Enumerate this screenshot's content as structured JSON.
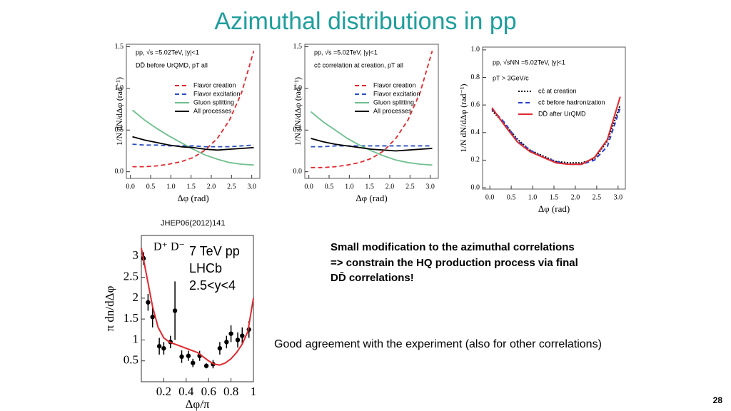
{
  "title": "Azimuthal distributions in pp",
  "notes": [
    "Small modification to the azimuthal correlations",
    "=> constrain the HQ production process via final",
    "DD̄ correlations!"
  ],
  "comment": "Good agreement with the experiment (also for other correlations)",
  "page_number": "28",
  "chart_data": [
    {
      "type": "line",
      "xlabel": "Δφ (rad)",
      "ylabel": "1/N dN/dΔφ (rad⁻¹)",
      "annotations": [
        "pp, √s =5.02TeV, |y|<1",
        "DD̄ before UrQMD, pT all"
      ],
      "xlim": [
        -0.1,
        3.2
      ],
      "ylim": [
        -0.08,
        1.53
      ],
      "xticks": [
        {
          "value": 0,
          "label": "0.0"
        },
        0.5,
        {
          "value": 1,
          "label": "1.0"
        },
        1.5,
        {
          "value": 2,
          "label": "2.0"
        },
        2.5,
        {
          "value": 3,
          "label": "3.0"
        }
      ],
      "yticks": [
        {
          "value": 0,
          "label": "0.0"
        },
        0.5,
        {
          "value": 1,
          "label": "1.0"
        },
        1.5
      ],
      "x": [
        0.05,
        0.35,
        0.65,
        0.95,
        1.25,
        1.55,
        1.85,
        2.15,
        2.45,
        2.75,
        3.05
      ],
      "series": [
        {
          "name": "Flavor creation",
          "color": "#e0282e",
          "dash": "dashed",
          "values": [
            0.06,
            0.06,
            0.07,
            0.09,
            0.12,
            0.17,
            0.26,
            0.4,
            0.62,
            0.95,
            1.45
          ]
        },
        {
          "name": "Flavor excitation",
          "color": "#2a4fc0",
          "dash": "dashed",
          "values": [
            0.33,
            0.32,
            0.32,
            0.31,
            0.31,
            0.31,
            0.3,
            0.3,
            0.3,
            0.31,
            0.32
          ]
        },
        {
          "name": "Gluon splitting",
          "color": "#6fbf8f",
          "dash": "solid",
          "values": [
            0.74,
            0.62,
            0.52,
            0.43,
            0.35,
            0.27,
            0.2,
            0.15,
            0.11,
            0.09,
            0.08
          ]
        },
        {
          "name": "All processes",
          "color": "#000000",
          "dash": "solid",
          "values": [
            0.42,
            0.38,
            0.35,
            0.32,
            0.3,
            0.29,
            0.27,
            0.26,
            0.27,
            0.28,
            0.29
          ]
        }
      ]
    },
    {
      "type": "line",
      "xlabel": "Δφ (rad)",
      "ylabel": "1/N dN/dΔφ (rad⁻¹)",
      "annotations": [
        "pp, √s =5.02TeV, |y|<1",
        "cc̄ correlation at creation, pT all"
      ],
      "xlim": [
        -0.1,
        3.2
      ],
      "ylim": [
        -0.08,
        1.53
      ],
      "xticks": [
        {
          "value": 0,
          "label": "0.0"
        },
        0.5,
        {
          "value": 1,
          "label": "1.0"
        },
        1.5,
        {
          "value": 2,
          "label": "2.0"
        },
        2.5,
        {
          "value": 3,
          "label": "3.0"
        }
      ],
      "yticks": [
        {
          "value": 0,
          "label": "0.0"
        },
        0.5,
        {
          "value": 1,
          "label": "1.0"
        },
        1.5
      ],
      "x": [
        0.05,
        0.35,
        0.65,
        0.95,
        1.25,
        1.55,
        1.85,
        2.15,
        2.45,
        2.75,
        3.05
      ],
      "series": [
        {
          "name": "Flavor creation",
          "color": "#e0282e",
          "dash": "dashed",
          "values": [
            0.05,
            0.05,
            0.06,
            0.08,
            0.11,
            0.16,
            0.25,
            0.4,
            0.62,
            0.95,
            1.45
          ]
        },
        {
          "name": "Flavor excitation",
          "color": "#2a4fc0",
          "dash": "dashed",
          "values": [
            0.3,
            0.3,
            0.31,
            0.31,
            0.31,
            0.31,
            0.31,
            0.31,
            0.31,
            0.31,
            0.31
          ]
        },
        {
          "name": "Gluon splitting",
          "color": "#6fbf8f",
          "dash": "solid",
          "values": [
            0.72,
            0.6,
            0.5,
            0.4,
            0.32,
            0.25,
            0.19,
            0.14,
            0.11,
            0.09,
            0.08
          ]
        },
        {
          "name": "All processes",
          "color": "#000000",
          "dash": "solid",
          "values": [
            0.4,
            0.36,
            0.33,
            0.31,
            0.29,
            0.27,
            0.26,
            0.25,
            0.26,
            0.27,
            0.28
          ]
        }
      ]
    },
    {
      "type": "line",
      "xlabel": "Δφ (rad)",
      "ylabel": "1/N dN/dΔφ (rad⁻¹)",
      "annotations": [
        "pp, √sNN =5.02TeV, |y|<1",
        "pT > 3GeV/c"
      ],
      "xlim": [
        -0.17,
        3.17
      ],
      "ylim": [
        -0.01,
        1.02
      ],
      "xticks": [
        {
          "value": 0,
          "label": "0.0"
        },
        0.5,
        {
          "value": 1,
          "label": "1.0"
        },
        1.5,
        {
          "value": 2,
          "label": "2.0"
        },
        2.5,
        {
          "value": 3,
          "label": "3.0"
        }
      ],
      "yticks": [
        {
          "value": 0,
          "label": "0.0"
        },
        0.2,
        0.4,
        0.6,
        0.8,
        {
          "value": 1,
          "label": "1.0"
        }
      ],
      "x": [
        0.05,
        0.35,
        0.65,
        0.95,
        1.25,
        1.55,
        1.85,
        2.15,
        2.45,
        2.75,
        3.05
      ],
      "series": [
        {
          "name": "cc̄ at creation",
          "color": "#000000",
          "dash": "dotted",
          "values": [
            0.56,
            0.46,
            0.35,
            0.27,
            0.23,
            0.19,
            0.18,
            0.18,
            0.21,
            0.34,
            0.6
          ]
        },
        {
          "name": "cc̄ before hadronization",
          "color": "#2a3fd0",
          "dash": "dashed",
          "values": [
            0.57,
            0.47,
            0.34,
            0.27,
            0.22,
            0.19,
            0.17,
            0.17,
            0.2,
            0.3,
            0.58
          ]
        },
        {
          "name": "DD̄ after UrQMD",
          "color": "#e0282e",
          "dash": "solid",
          "values": [
            0.58,
            0.45,
            0.33,
            0.26,
            0.22,
            0.18,
            0.17,
            0.17,
            0.22,
            0.35,
            0.66
          ]
        }
      ]
    },
    {
      "type": "scatter",
      "source": "JHEP06(2012)141",
      "xlabel": "Δφ/π",
      "ylabel": "π dn/dΔφ",
      "annotations": [
        "D⁺ D⁻",
        "7 TeV pp",
        "LHCb",
        "2.5<y<4"
      ],
      "xlim": [
        0,
        1
      ],
      "ylim": [
        0,
        3.5
      ],
      "xticks": [
        0.2,
        0.4,
        0.6,
        0.8,
        1
      ],
      "yticks": [
        0.5,
        1,
        1.5,
        2,
        2.5,
        3
      ],
      "series": [
        {
          "color": "#000000",
          "mode": "points",
          "x": [
            0.02,
            0.06,
            0.1,
            0.16,
            0.2,
            0.26,
            0.3,
            0.36,
            0.42,
            0.46,
            0.52,
            0.58,
            0.64,
            0.7,
            0.76,
            0.8,
            0.86,
            0.9,
            0.96
          ],
          "values": [
            2.95,
            1.9,
            1.55,
            0.85,
            0.8,
            0.95,
            1.7,
            0.6,
            0.62,
            0.45,
            0.62,
            0.38,
            0.42,
            0.8,
            0.95,
            1.15,
            1.0,
            1.1,
            1.25
          ],
          "errors": [
            0.15,
            0.2,
            0.25,
            0.2,
            0.15,
            0.15,
            0.7,
            0.15,
            0.12,
            0.1,
            0.12,
            0.06,
            0.1,
            0.15,
            0.15,
            0.2,
            0.18,
            0.2,
            0.2
          ]
        },
        {
          "color": "#e0282e",
          "mode": "line",
          "x": [
            0,
            0.05,
            0.1,
            0.15,
            0.2,
            0.25,
            0.3,
            0.35,
            0.4,
            0.45,
            0.5,
            0.55,
            0.6,
            0.65,
            0.7,
            0.75,
            0.8,
            0.85,
            0.9,
            0.95,
            1
          ],
          "values": [
            3.2,
            2.5,
            1.8,
            1.3,
            1.05,
            0.95,
            0.9,
            0.85,
            0.8,
            0.75,
            0.7,
            0.6,
            0.5,
            0.42,
            0.4,
            0.45,
            0.55,
            0.7,
            0.9,
            1.2,
            2.0
          ]
        }
      ]
    }
  ]
}
